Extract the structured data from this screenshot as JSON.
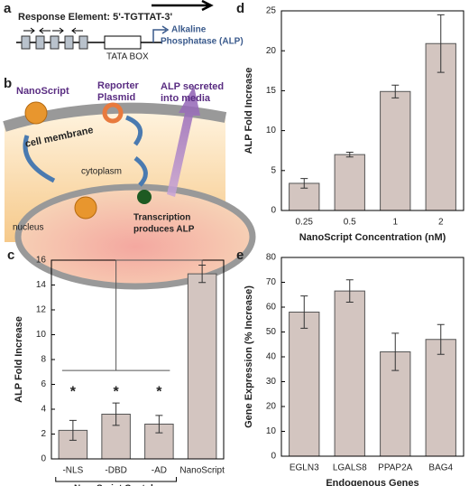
{
  "diagram": {
    "panel_a": {
      "label": "a",
      "response_element": "Response Element: 5'-TGTTAT-3'",
      "tata_box": "TATA BOX",
      "gene": [
        "Alkaline",
        "Phosphatase (ALP)"
      ]
    },
    "panel_b": {
      "label": "b",
      "nanoscript": "NanoScript",
      "reporter_plasmid": [
        "Reporter",
        "Plasmid"
      ],
      "secreted": [
        "ALP secreted",
        "into media"
      ],
      "cell_membrane": "cell membrane",
      "cytoplasm": "cytoplasm",
      "nucleus": "nucleus",
      "transcription": [
        "Transcription",
        "produces ALP"
      ]
    }
  },
  "chart_data": [
    {
      "type": "bar",
      "label": "c",
      "ylabel": "ALP Fold Increase",
      "categories": [
        "-NLS",
        "-DBD",
        "-AD",
        "NanoScript"
      ],
      "values": [
        2.3,
        3.6,
        2.8,
        14.9
      ],
      "errors": [
        0.8,
        0.9,
        0.7,
        0.7
      ],
      "annotations": [
        "*",
        "*",
        "*"
      ],
      "group_label": "NanoScript Contols",
      "color": "#d3c5c0",
      "ylim": [
        0,
        16
      ],
      "yticks": [
        0,
        2,
        4,
        6,
        8,
        10,
        12,
        14,
        16
      ]
    },
    {
      "type": "bar",
      "label": "d",
      "xlabel": "NanoScript Concentration (nM)",
      "ylabel": "ALP Fold Increase",
      "categories": [
        "0.25",
        "0.5",
        "1",
        "2"
      ],
      "values": [
        3.4,
        7.0,
        14.9,
        20.9
      ],
      "errors": [
        0.6,
        0.3,
        0.8,
        3.6
      ],
      "color": "#d3c5c0",
      "ylim": [
        0,
        25
      ],
      "yticks": [
        0,
        5,
        10,
        15,
        20,
        25
      ]
    },
    {
      "type": "bar",
      "label": "e",
      "xlabel": "Endogenous Genes",
      "ylabel": "Gene Expression (% Increase)",
      "categories": [
        "EGLN3",
        "LGALS8",
        "PPAP2A",
        "BAG4"
      ],
      "values": [
        58,
        66.5,
        42,
        47
      ],
      "errors": [
        6.5,
        4.5,
        7.5,
        6
      ],
      "color": "#d3c5c0",
      "ylim": [
        0,
        80
      ],
      "yticks": [
        0,
        10,
        20,
        30,
        40,
        50,
        60,
        70,
        80
      ]
    }
  ]
}
